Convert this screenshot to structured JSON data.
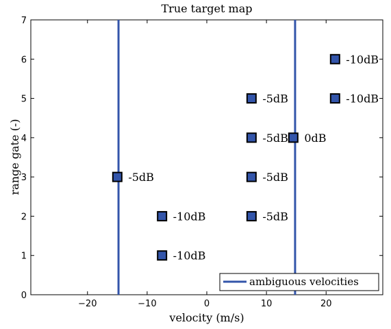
{
  "chart_data": {
    "type": "scatter",
    "title": "True target map",
    "xlabel": "velocity (m/s)",
    "ylabel": "range gate (-)",
    "xlim": [
      -29.5,
      29.5
    ],
    "ylim": [
      0,
      7
    ],
    "xticks": [
      -20,
      -10,
      0,
      10,
      20
    ],
    "yticks": [
      0,
      1,
      2,
      3,
      4,
      5,
      6,
      7
    ],
    "xtick_labels": [
      "−20",
      "−10",
      "0",
      "10",
      "20"
    ],
    "ytick_labels": [
      "0",
      "1",
      "2",
      "3",
      "4",
      "5",
      "6",
      "7"
    ],
    "marker": "square",
    "marker_color": "#3355aa",
    "line_color": "#3355aa",
    "grid": false,
    "points": [
      {
        "x": -15,
        "y": 3,
        "label": "-5dB"
      },
      {
        "x": -7.5,
        "y": 2,
        "label": "-10dB"
      },
      {
        "x": -7.5,
        "y": 1,
        "label": "-10dB"
      },
      {
        "x": 7.5,
        "y": 5,
        "label": "-5dB"
      },
      {
        "x": 7.5,
        "y": 4,
        "label": "-5dB"
      },
      {
        "x": 7.5,
        "y": 3,
        "label": "-5dB"
      },
      {
        "x": 7.5,
        "y": 2,
        "label": "-5dB"
      },
      {
        "x": 14.5,
        "y": 4,
        "label": "0dB"
      },
      {
        "x": 21.5,
        "y": 6,
        "label": "-10dB"
      },
      {
        "x": 21.5,
        "y": 5,
        "label": "-10dB"
      }
    ],
    "vlines": [
      -14.8,
      14.8
    ],
    "legend": {
      "label": "ambiguous velocities",
      "position": "bottom-right"
    }
  }
}
